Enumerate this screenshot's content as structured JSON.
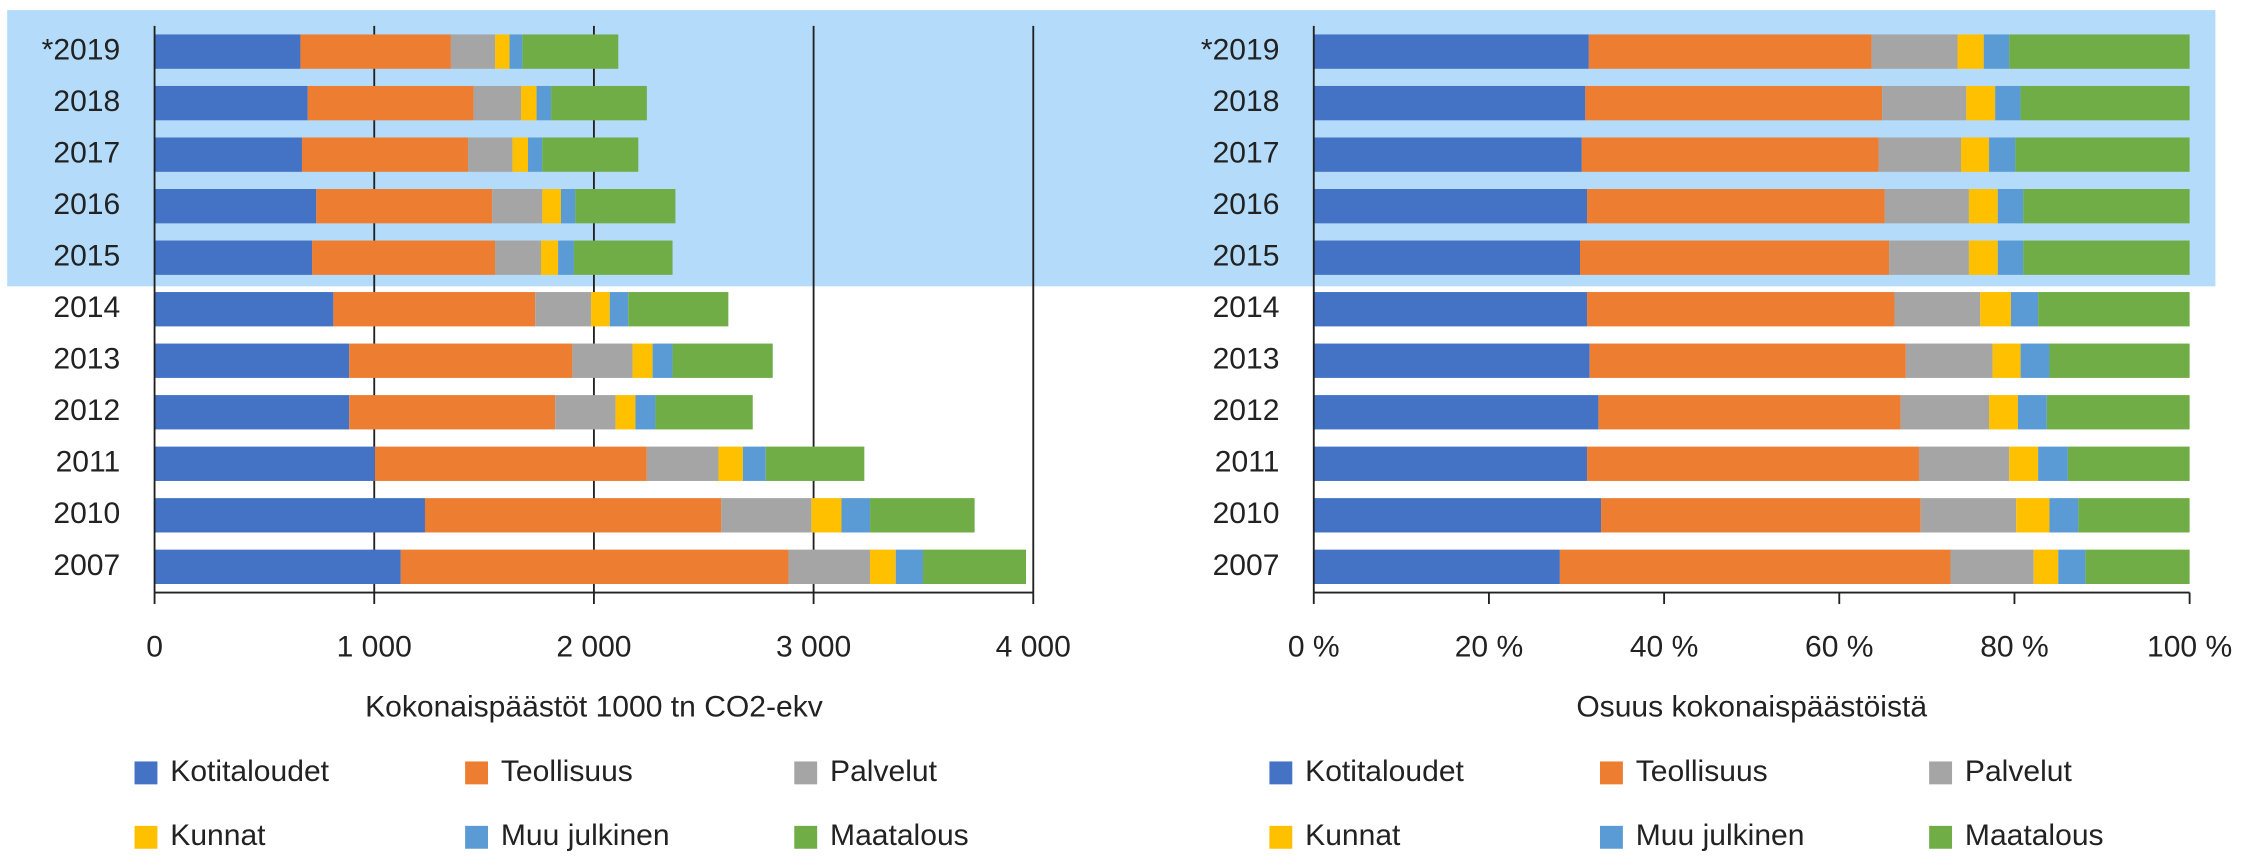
{
  "chart_data": [
    {
      "type": "bar",
      "orientation": "horizontal",
      "stacked": true,
      "xlabel": "Kokonaispäästöt 1000 tn CO2-ekv",
      "categories": [
        "*2019",
        "2018",
        "2017",
        "2016",
        "2015",
        "2014",
        "2013",
        "2012",
        "2011",
        "2010",
        "2007"
      ],
      "series": [
        {
          "name": "Kotitaloudet",
          "color": "#4472c4",
          "values": [
            664,
            697,
            671,
            736,
            717,
            814,
            886,
            886,
            1003,
            1231,
            1121
          ]
        },
        {
          "name": "Teollisuus",
          "color": "#ed7d31",
          "values": [
            685,
            756,
            756,
            801,
            833,
            919,
            1016,
            938,
            1238,
            1349,
            1765
          ]
        },
        {
          "name": "Palvelut",
          "color": "#a5a5a5",
          "values": [
            201,
            215,
            202,
            228,
            209,
            254,
            274,
            274,
            326,
            410,
            371
          ]
        },
        {
          "name": "Kunnat",
          "color": "#ffc000",
          "values": [
            66,
            71,
            71,
            85,
            78,
            85,
            91,
            91,
            111,
            137,
            117
          ]
        },
        {
          "name": "Muu julkinen",
          "color": "#5b9bd5",
          "values": [
            58,
            66,
            65,
            65,
            72,
            84,
            91,
            91,
            104,
            130,
            124
          ]
        },
        {
          "name": "Maatalous",
          "color": "#70ad47",
          "values": [
            437,
            436,
            437,
            456,
            449,
            456,
            456,
            443,
            449,
            476,
            469
          ]
        }
      ],
      "xlim": [
        0,
        4000
      ],
      "xticks": [
        0,
        {
          "value": 1000,
          "label": "1 000"
        },
        {
          "value": 2000,
          "label": "2 000"
        },
        {
          "value": 3000,
          "label": "3 000"
        },
        {
          "value": 4000,
          "label": "4 000"
        }
      ],
      "grid": true,
      "legend": "bottom"
    },
    {
      "type": "bar",
      "orientation": "horizontal",
      "stacked": true,
      "xlabel": "Osuus kokonaispäästöistä",
      "categories": [
        "*2019",
        "2018",
        "2017",
        "2016",
        "2015",
        "2014",
        "2013",
        "2012",
        "2011",
        "2010",
        "2007"
      ],
      "series": [
        {
          "name": "Kotitaloudet",
          "color": "#4472c4",
          "values": [
            31.4,
            31.0,
            30.6,
            31.2,
            30.4,
            31.2,
            31.5,
            32.5,
            31.2,
            32.8,
            28.1
          ]
        },
        {
          "name": "Teollisuus",
          "color": "#ed7d31",
          "values": [
            32.3,
            33.9,
            33.9,
            34.0,
            35.3,
            35.1,
            36.1,
            34.5,
            37.9,
            36.5,
            44.6
          ]
        },
        {
          "name": "Palvelut",
          "color": "#a5a5a5",
          "values": [
            9.8,
            9.6,
            9.4,
            9.6,
            9.1,
            9.8,
            9.9,
            10.1,
            10.3,
            10.9,
            9.5
          ]
        },
        {
          "name": "Kunnat",
          "color": "#ffc000",
          "values": [
            3.0,
            3.3,
            3.2,
            3.3,
            3.3,
            3.5,
            3.2,
            3.3,
            3.3,
            3.8,
            2.8
          ]
        },
        {
          "name": "Muu julkinen",
          "color": "#5b9bd5",
          "values": [
            2.9,
            2.9,
            3.0,
            2.9,
            2.9,
            3.1,
            3.3,
            3.3,
            3.4,
            3.3,
            3.1
          ]
        },
        {
          "name": "Maatalous",
          "color": "#70ad47",
          "values": [
            20.6,
            19.3,
            19.9,
            19.0,
            19.0,
            17.3,
            16.0,
            16.3,
            13.9,
            12.7,
            11.9
          ]
        }
      ],
      "xlim": [
        0,
        100
      ],
      "xticks": [
        {
          "value": 0,
          "label": "0 %"
        },
        {
          "value": 20,
          "label": "20 %"
        },
        {
          "value": 40,
          "label": "40 %"
        },
        {
          "value": 60,
          "label": "60 %"
        },
        {
          "value": 80,
          "label": "80 %"
        },
        {
          "value": 100,
          "label": "100 %"
        }
      ],
      "grid": false,
      "legend": "bottom"
    }
  ]
}
